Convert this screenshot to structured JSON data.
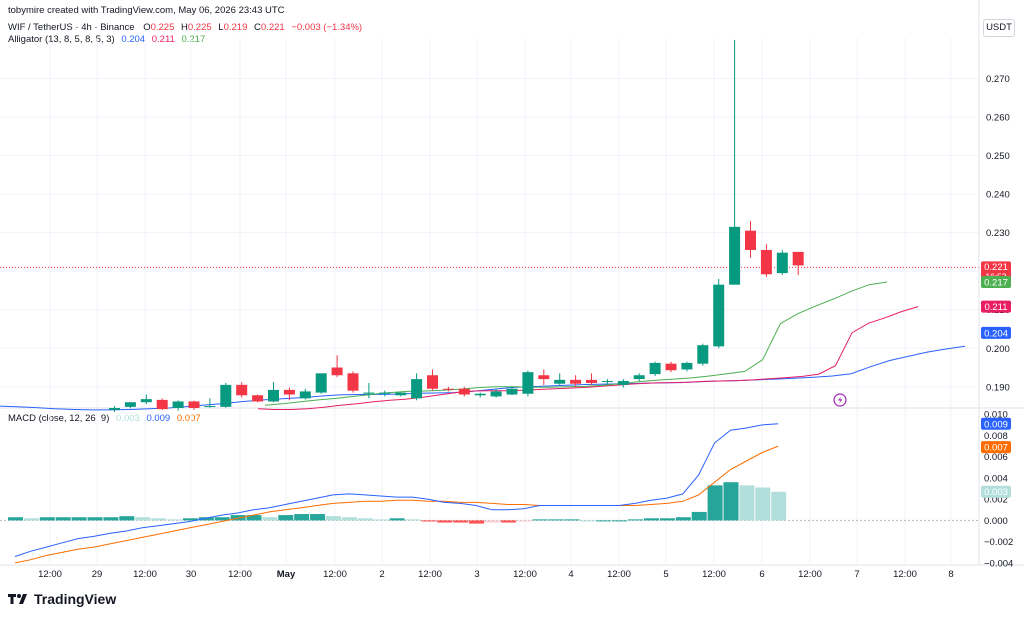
{
  "header": {
    "created_by": "tobymire created with TradingView.com, May 06, 2026 23:43 UTC"
  },
  "legend": {
    "symbol": "WIF / TetherUS · 4h · Binance",
    "o_label": "O",
    "o": "0.225",
    "h_label": "H",
    "h": "0.225",
    "l_label": "L",
    "l": "0.219",
    "c_label": "C",
    "c": "0.221",
    "change": "−0.003 (−1.34%)",
    "alligator_label": "Alligator (13, 8, 5, 8, 5, 3)",
    "alligator_jaw": "0.204",
    "alligator_teeth": "0.211",
    "alligator_lips": "0.217",
    "macd_label": "MACD (close, 12, 26, 9)",
    "macd_hist": "0.003",
    "macd_line": "0.009",
    "macd_signal": "0.007"
  },
  "currency": "USDT",
  "brand": "TradingView",
  "colors": {
    "up": "#26a69a",
    "up_dark": "#089981",
    "down": "#f23645",
    "jaw": "#2962ff",
    "teeth": "#e91e63",
    "lips": "#4caf50",
    "macd": "#2962ff",
    "signal": "#ff6d00",
    "hist_up_strong": "#26a69a",
    "hist_up_weak": "#b2dfdb",
    "hist_down_strong": "#ff5252",
    "hist_down_weak": "#ffcdd2"
  },
  "chart_data": [
    {
      "type": "candlestick",
      "panel": "price",
      "symbol": "WIF / TetherUS",
      "interval": "4h",
      "ylim": [
        0.1845,
        0.2805
      ],
      "y_ticks": [
        "0.270",
        "0.260",
        "0.250",
        "0.240",
        "0.230",
        "0.220",
        "0.210",
        "0.200",
        "0.190"
      ],
      "candles": [
        {
          "o": 0.184,
          "h": 0.185,
          "l": 0.1835,
          "c": 0.1845
        },
        {
          "o": 0.1848,
          "h": 0.186,
          "l": 0.1844,
          "c": 0.186
        },
        {
          "o": 0.186,
          "h": 0.188,
          "l": 0.1855,
          "c": 0.1868
        },
        {
          "o": 0.1866,
          "h": 0.187,
          "l": 0.184,
          "c": 0.1842
        },
        {
          "o": 0.1845,
          "h": 0.1865,
          "l": 0.1838,
          "c": 0.1862
        },
        {
          "o": 0.1862,
          "h": 0.1864,
          "l": 0.184,
          "c": 0.1845
        },
        {
          "o": 0.1848,
          "h": 0.187,
          "l": 0.1846,
          "c": 0.185
        },
        {
          "o": 0.1848,
          "h": 0.191,
          "l": 0.1846,
          "c": 0.1905
        },
        {
          "o": 0.1905,
          "h": 0.1912,
          "l": 0.1872,
          "c": 0.1878
        },
        {
          "o": 0.1878,
          "h": 0.188,
          "l": 0.186,
          "c": 0.1862
        },
        {
          "o": 0.1862,
          "h": 0.1912,
          "l": 0.186,
          "c": 0.1892
        },
        {
          "o": 0.1892,
          "h": 0.1898,
          "l": 0.1865,
          "c": 0.188
        },
        {
          "o": 0.187,
          "h": 0.1895,
          "l": 0.1867,
          "c": 0.1888
        },
        {
          "o": 0.1885,
          "h": 0.1935,
          "l": 0.1882,
          "c": 0.1935
        },
        {
          "o": 0.195,
          "h": 0.1982,
          "l": 0.1925,
          "c": 0.193
        },
        {
          "o": 0.1935,
          "h": 0.194,
          "l": 0.1885,
          "c": 0.189
        },
        {
          "o": 0.1882,
          "h": 0.191,
          "l": 0.187,
          "c": 0.1885
        },
        {
          "o": 0.1882,
          "h": 0.189,
          "l": 0.1875,
          "c": 0.1885
        },
        {
          "o": 0.1878,
          "h": 0.1885,
          "l": 0.1875,
          "c": 0.1885
        },
        {
          "o": 0.187,
          "h": 0.1935,
          "l": 0.1865,
          "c": 0.192
        },
        {
          "o": 0.193,
          "h": 0.1945,
          "l": 0.189,
          "c": 0.1895
        },
        {
          "o": 0.1895,
          "h": 0.19,
          "l": 0.1888,
          "c": 0.1893
        },
        {
          "o": 0.1895,
          "h": 0.19,
          "l": 0.1875,
          "c": 0.188
        },
        {
          "o": 0.1878,
          "h": 0.1885,
          "l": 0.1872,
          "c": 0.1882
        },
        {
          "o": 0.1875,
          "h": 0.1895,
          "l": 0.1872,
          "c": 0.1888
        },
        {
          "o": 0.188,
          "h": 0.19,
          "l": 0.1878,
          "c": 0.1895
        },
        {
          "o": 0.1882,
          "h": 0.1942,
          "l": 0.1875,
          "c": 0.1938
        },
        {
          "o": 0.193,
          "h": 0.1945,
          "l": 0.1905,
          "c": 0.192
        },
        {
          "o": 0.1908,
          "h": 0.1935,
          "l": 0.1905,
          "c": 0.1918
        },
        {
          "o": 0.1918,
          "h": 0.193,
          "l": 0.19,
          "c": 0.1908
        },
        {
          "o": 0.1918,
          "h": 0.1935,
          "l": 0.1905,
          "c": 0.191
        },
        {
          "o": 0.1915,
          "h": 0.192,
          "l": 0.1905,
          "c": 0.1915
        },
        {
          "o": 0.1905,
          "h": 0.192,
          "l": 0.1898,
          "c": 0.1915
        },
        {
          "o": 0.192,
          "h": 0.1935,
          "l": 0.1915,
          "c": 0.193
        },
        {
          "o": 0.1933,
          "h": 0.1965,
          "l": 0.1928,
          "c": 0.1962
        },
        {
          "o": 0.196,
          "h": 0.1965,
          "l": 0.1938,
          "c": 0.1943
        },
        {
          "o": 0.1945,
          "h": 0.1965,
          "l": 0.194,
          "c": 0.1962
        },
        {
          "o": 0.196,
          "h": 0.2012,
          "l": 0.1955,
          "c": 0.2008
        },
        {
          "o": 0.2005,
          "h": 0.218,
          "l": 0.2,
          "c": 0.2165
        },
        {
          "o": 0.2165,
          "h": 0.28,
          "l": 0.2165,
          "c": 0.2315
        },
        {
          "o": 0.2305,
          "h": 0.233,
          "l": 0.2235,
          "c": 0.2255
        },
        {
          "o": 0.2255,
          "h": 0.227,
          "l": 0.2185,
          "c": 0.2192
        },
        {
          "o": 0.2195,
          "h": 0.2255,
          "l": 0.219,
          "c": 0.2248
        },
        {
          "o": 0.225,
          "h": 0.225,
          "l": 0.219,
          "c": 0.2215
        }
      ],
      "last_price": "0.221",
      "countdown": "16:53",
      "alligator": {
        "jaw": [
          0.185,
          0.1848,
          0.1846,
          0.1843,
          0.1841,
          0.184,
          0.184,
          0.1841,
          0.1843,
          0.1845,
          0.1849,
          0.1853,
          0.1857,
          0.1862,
          0.1866,
          0.1869,
          0.1872,
          0.1876,
          0.1879,
          0.188,
          0.188,
          0.1881,
          0.1883,
          0.1884,
          0.1885,
          0.1888,
          0.1893,
          0.1898,
          0.19,
          0.1902,
          0.1904,
          0.1906,
          0.1907,
          0.1908,
          0.1909,
          0.191,
          0.1911,
          0.1913,
          0.1915,
          0.1916,
          0.1918,
          0.192,
          0.1922,
          0.1925,
          0.1928,
          0.1934,
          0.1952,
          0.1968,
          0.1979,
          0.199,
          0.1998,
          0.2005
        ],
        "teeth": [
          0.1843,
          0.1841,
          0.1841,
          0.1843,
          0.1847,
          0.1852,
          0.1856,
          0.1861,
          0.1865,
          0.1868,
          0.1873,
          0.1879,
          0.1885,
          0.1889,
          0.189,
          0.189,
          0.1891,
          0.1893,
          0.1895,
          0.1897,
          0.1899,
          0.1902,
          0.1905,
          0.1908,
          0.191,
          0.1911,
          0.1912,
          0.1914,
          0.1915,
          0.1916,
          0.1918,
          0.1921,
          0.1924,
          0.1927,
          0.1933,
          0.1955,
          0.204,
          0.2065,
          0.2079,
          0.2095,
          0.2108
        ],
        "lips": [
          0.1852,
          0.1856,
          0.1861,
          0.1866,
          0.187,
          0.1875,
          0.188,
          0.1885,
          0.1888,
          0.1889,
          0.1891,
          0.1894,
          0.1898,
          0.19,
          0.19,
          0.1899,
          0.1899,
          0.19,
          0.1901,
          0.1904,
          0.1908,
          0.1913,
          0.1917,
          0.192,
          0.1923,
          0.1928,
          0.1934,
          0.194,
          0.197,
          0.2064,
          0.209,
          0.211,
          0.2128,
          0.2148,
          0.2165,
          0.2172
        ]
      }
    },
    {
      "type": "bar",
      "panel": "MACD (close, 12, 26, 9)",
      "ylim": [
        -0.0042,
        0.0104
      ],
      "y_ticks": [
        "0.010",
        "0.008",
        "0.006",
        "0.004",
        "0.002",
        "0.000",
        "−0.002",
        "−0.004"
      ],
      "histogram": [
        0.0003,
        0.0002,
        0.0003,
        0.0003,
        0.0003,
        0.0003,
        0.0003,
        0.0004,
        0.0003,
        0.0002,
        0.0001,
        0.0002,
        0.0003,
        0.0003,
        0.0005,
        0.0005,
        0.0003,
        0.0005,
        0.0006,
        0.0006,
        0.0004,
        0.0003,
        0.0002,
        0.0001,
        0.0002,
        0.0001,
        -0.0001,
        -0.0002,
        -0.0002,
        -0.0003,
        -0.0002,
        -0.0002,
        -0.0001,
        0.0001,
        0.0001,
        0.0001,
        0.0,
        0.0,
        0.0,
        0.0001,
        0.0002,
        0.0002,
        0.0003,
        0.0008,
        0.0033,
        0.0036,
        0.0033,
        0.0031,
        0.0027
      ],
      "macd_line": [
        -0.0034,
        -0.0029,
        -0.0025,
        -0.0021,
        -0.0017,
        -0.0015,
        -0.0012,
        -0.001,
        -0.0007,
        -0.0005,
        -0.0003,
        -0.0001,
        0.0002,
        0.0005,
        0.0007,
        0.001,
        0.0012,
        0.0015,
        0.0018,
        0.0021,
        0.0024,
        0.0025,
        0.0024,
        0.0023,
        0.0022,
        0.0022,
        0.002,
        0.0017,
        0.0016,
        0.0014,
        0.001,
        0.001,
        0.0011,
        0.0014,
        0.0014,
        0.0014,
        0.0014,
        0.0014,
        0.0014,
        0.0016,
        0.0019,
        0.0021,
        0.0025,
        0.0043,
        0.0073,
        0.0085,
        0.0087,
        0.009,
        0.0091
      ],
      "signal_line": [
        -0.004,
        -0.0037,
        -0.0033,
        -0.003,
        -0.0027,
        -0.0025,
        -0.0022,
        -0.0019,
        -0.0016,
        -0.0013,
        -0.001,
        -0.0007,
        -0.0004,
        -0.0001,
        0.0002,
        0.0005,
        0.0008,
        0.001,
        0.0012,
        0.0014,
        0.0016,
        0.0017,
        0.0018,
        0.0018,
        0.0019,
        0.0019,
        0.0018,
        0.0018,
        0.0017,
        0.0017,
        0.0016,
        0.0015,
        0.0015,
        0.0014,
        0.0014,
        0.0014,
        0.0014,
        0.0014,
        0.0014,
        0.0014,
        0.0015,
        0.0016,
        0.0018,
        0.0024,
        0.0036,
        0.0048,
        0.0056,
        0.0064,
        0.007
      ],
      "values_shown": {
        "histogram": "0.003",
        "macd": "0.009",
        "signal": "0.007"
      }
    }
  ],
  "x_axis": {
    "tick_labels": [
      "12:00",
      "29",
      "12:00",
      "30",
      "12:00",
      "May",
      "12:00",
      "2",
      "12:00",
      "3",
      "12:00",
      "4",
      "12:00",
      "5",
      "12:00",
      "6",
      "12:00",
      "7",
      "12:00",
      "8"
    ]
  }
}
